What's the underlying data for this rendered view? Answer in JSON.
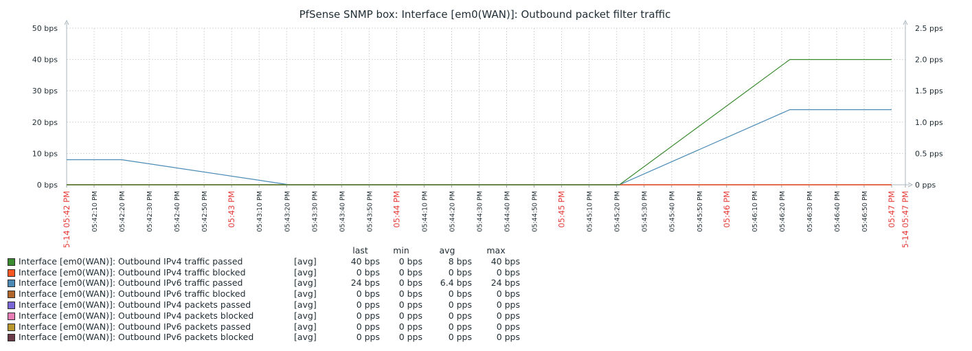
{
  "chart_data": {
    "type": "line",
    "title": "PfSense SNMP box: Interface [em0(WAN)]: Outbound packet filter traffic",
    "grid": true,
    "y_left": {
      "unit": "bps",
      "range": [
        0,
        50
      ],
      "ticks": [
        "0 bps",
        "10 bps",
        "20 bps",
        "30 bps",
        "40 bps",
        "50 bps"
      ]
    },
    "y_right": {
      "unit": "pps",
      "range": [
        0,
        2.5
      ],
      "ticks": [
        "0 pps",
        "0.5 pps",
        "1.0 pps",
        "1.5 pps",
        "2.0 pps",
        "2.5 pps"
      ]
    },
    "x_range_seconds": [
      0,
      300
    ],
    "x_ticks": [
      {
        "t": 0,
        "label": "05-14 05:42 PM",
        "highlight": true
      },
      {
        "t": 10,
        "label": "05:42:10 PM",
        "highlight": false
      },
      {
        "t": 20,
        "label": "05:42:20 PM",
        "highlight": false
      },
      {
        "t": 30,
        "label": "05:42:30 PM",
        "highlight": false
      },
      {
        "t": 40,
        "label": "05:42:40 PM",
        "highlight": false
      },
      {
        "t": 50,
        "label": "05:42:50 PM",
        "highlight": false
      },
      {
        "t": 60,
        "label": "05:43 PM",
        "highlight": true
      },
      {
        "t": 70,
        "label": "05:43:10 PM",
        "highlight": false
      },
      {
        "t": 80,
        "label": "05:43:20 PM",
        "highlight": false
      },
      {
        "t": 90,
        "label": "05:43:30 PM",
        "highlight": false
      },
      {
        "t": 100,
        "label": "05:43:40 PM",
        "highlight": false
      },
      {
        "t": 110,
        "label": "05:43:50 PM",
        "highlight": false
      },
      {
        "t": 120,
        "label": "05:44 PM",
        "highlight": true
      },
      {
        "t": 130,
        "label": "05:44:10 PM",
        "highlight": false
      },
      {
        "t": 140,
        "label": "05:44:20 PM",
        "highlight": false
      },
      {
        "t": 150,
        "label": "05:44:30 PM",
        "highlight": false
      },
      {
        "t": 160,
        "label": "05:44:40 PM",
        "highlight": false
      },
      {
        "t": 170,
        "label": "05:44:50 PM",
        "highlight": false
      },
      {
        "t": 180,
        "label": "05:45 PM",
        "highlight": true
      },
      {
        "t": 190,
        "label": "05:45:10 PM",
        "highlight": false
      },
      {
        "t": 200,
        "label": "05:45:20 PM",
        "highlight": false
      },
      {
        "t": 210,
        "label": "05:45:30 PM",
        "highlight": false
      },
      {
        "t": 220,
        "label": "05:45:40 PM",
        "highlight": false
      },
      {
        "t": 230,
        "label": "05:45:50 PM",
        "highlight": false
      },
      {
        "t": 240,
        "label": "05:46 PM",
        "highlight": true
      },
      {
        "t": 250,
        "label": "05:46:10 PM",
        "highlight": false
      },
      {
        "t": 260,
        "label": "05:46:20 PM",
        "highlight": false
      },
      {
        "t": 270,
        "label": "05:46:30 PM",
        "highlight": false
      },
      {
        "t": 280,
        "label": "05:46:40 PM",
        "highlight": false
      },
      {
        "t": 290,
        "label": "05:46:50 PM",
        "highlight": false
      },
      {
        "t": 300,
        "label": "05:47 PM",
        "highlight": true
      },
      {
        "t": 305,
        "label": "05-14 05:47 PM",
        "highlight": true
      }
    ],
    "series": [
      {
        "name": "Interface [em0(WAN)]: Outbound IPv4 traffic passed",
        "color": "#3a8a2f",
        "axis": "left",
        "x": [
          0,
          201,
          263,
          300
        ],
        "y": [
          0,
          0,
          40,
          40
        ]
      },
      {
        "name": "Interface [em0(WAN)]: Outbound IPv4 traffic blocked",
        "color": "#ff5722",
        "axis": "left",
        "x": [
          0,
          300
        ],
        "y": [
          0,
          0
        ]
      },
      {
        "name": "Interface [em0(WAN)]: Outbound IPv6 traffic passed",
        "color": "#4a8ab5",
        "axis": "left",
        "x": [
          0,
          20,
          81,
          201,
          263,
          300
        ],
        "y": [
          8,
          8,
          0,
          0,
          24,
          24
        ]
      },
      {
        "name": "Interface [em0(WAN)]: Outbound IPv6 traffic blocked",
        "color": "#b0652a",
        "axis": "left",
        "x": [
          0,
          300
        ],
        "y": [
          0,
          0
        ]
      },
      {
        "name": "Interface [em0(WAN)]: Outbound IPv4 packets passed",
        "color": "#7b68d8",
        "axis": "right",
        "x": [
          0,
          300
        ],
        "y": [
          0,
          0
        ]
      },
      {
        "name": "Interface [em0(WAN)]: Outbound IPv4 packets blocked",
        "color": "#e87cb4",
        "axis": "right",
        "x": [
          0,
          300
        ],
        "y": [
          0,
          0
        ]
      },
      {
        "name": "Interface [em0(WAN)]: Outbound IPv6 packets passed",
        "color": "#b8982e",
        "axis": "right",
        "x": [
          0,
          300
        ],
        "y": [
          0,
          0
        ]
      },
      {
        "name": "Interface [em0(WAN)]: Outbound IPv6 packets blocked",
        "color": "#6b3a48",
        "axis": "right",
        "x": [
          0,
          300
        ],
        "y": [
          0,
          0
        ]
      }
    ]
  },
  "legend": {
    "headers": {
      "last": "last",
      "min": "min",
      "avg": "avg",
      "max": "max"
    },
    "rows": [
      {
        "name": "Interface [em0(WAN)]: Outbound IPv4 traffic passed",
        "fn": "[avg]",
        "last": "40 bps",
        "min": "0 bps",
        "avg": "8 bps",
        "max": "40 bps",
        "color": "#3a8a2f"
      },
      {
        "name": "Interface [em0(WAN)]: Outbound IPv4 traffic blocked",
        "fn": "[avg]",
        "last": "0 bps",
        "min": "0 bps",
        "avg": "0 bps",
        "max": "0 bps",
        "color": "#ff5722"
      },
      {
        "name": "Interface [em0(WAN)]: Outbound IPv6 traffic passed",
        "fn": "[avg]",
        "last": "24 bps",
        "min": "0 bps",
        "avg": "6.4 bps",
        "max": "24 bps",
        "color": "#4a8ab5"
      },
      {
        "name": "Interface [em0(WAN)]: Outbound IPv6 traffic blocked",
        "fn": "[avg]",
        "last": "0 bps",
        "min": "0 bps",
        "avg": "0 bps",
        "max": "0 bps",
        "color": "#b0652a"
      },
      {
        "name": "Interface [em0(WAN)]: Outbound IPv4 packets passed",
        "fn": "[avg]",
        "last": "0 pps",
        "min": "0 pps",
        "avg": "0 pps",
        "max": "0 pps",
        "color": "#7b68d8"
      },
      {
        "name": "Interface [em0(WAN)]: Outbound IPv4 packets blocked",
        "fn": "[avg]",
        "last": "0 pps",
        "min": "0 pps",
        "avg": "0 pps",
        "max": "0 pps",
        "color": "#e87cb4"
      },
      {
        "name": "Interface [em0(WAN)]: Outbound IPv6 packets passed",
        "fn": "[avg]",
        "last": "0 pps",
        "min": "0 pps",
        "avg": "0 pps",
        "max": "0 pps",
        "color": "#b8982e"
      },
      {
        "name": "Interface [em0(WAN)]: Outbound IPv6 packets blocked",
        "fn": "[avg]",
        "last": "0 pps",
        "min": "0 pps",
        "avg": "0 pps",
        "max": "0 pps",
        "color": "#6b3a48"
      }
    ]
  }
}
